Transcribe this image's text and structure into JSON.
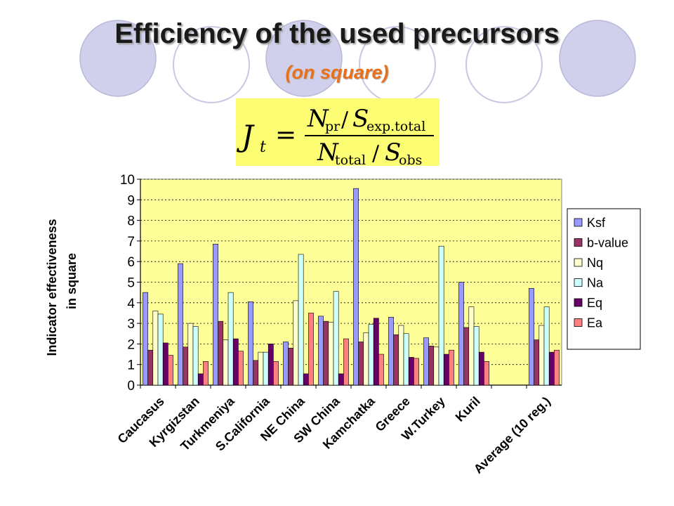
{
  "slide": {
    "title": "Efficiency of the used precursors",
    "subtitle": "(on square)",
    "formula": {
      "lhs": "J",
      "lhs_sub": "t",
      "eq": "=",
      "num_a": "N",
      "num_a_sub": "pr",
      "num_slash": "/",
      "num_b": "S",
      "num_b_sub": "exp.total",
      "den_a": "N",
      "den_a_sub": "total",
      "den_slash": "/",
      "den_b": "S",
      "den_b_sub": "obs"
    }
  },
  "colors": {
    "plot_background": "#ffff99",
    "formula_background": "#fdfd74",
    "circle_fill": "#d0d0ec",
    "circle_stroke": "#b8b8d8"
  },
  "chart_data": {
    "type": "bar",
    "ylabel_line1": "Indicator effectiveness",
    "ylabel_line2": "in square",
    "ylim": [
      0,
      10
    ],
    "yticks": [
      "0",
      "1",
      "2",
      "3",
      "4",
      "5",
      "6",
      "7",
      "8",
      "9",
      "10"
    ],
    "grid": "dotted horizontal",
    "legend_position": "right",
    "categories": [
      "Caucasus",
      "Kyrgizstan",
      "Turkmeniya",
      "S.California",
      "NE China",
      "SW China",
      "Kamchatka",
      "Greece",
      "W.Turkey",
      "Kuril",
      "",
      "Average (10 reg.)"
    ],
    "series": [
      {
        "name": "Ksf",
        "color": "#9999ff",
        "values": [
          4.5,
          5.9,
          6.85,
          4.05,
          2.1,
          3.35,
          9.55,
          3.3,
          2.3,
          5.0,
          0,
          4.7
        ]
      },
      {
        "name": "b-value",
        "color": "#993366",
        "values": [
          1.7,
          1.85,
          3.1,
          1.2,
          1.8,
          3.1,
          2.1,
          2.45,
          1.9,
          2.8,
          0,
          2.2
        ]
      },
      {
        "name": "Nq",
        "color": "#ffffcc",
        "values": [
          3.6,
          3.0,
          2.2,
          1.6,
          4.1,
          3.05,
          2.55,
          2.9,
          1.85,
          3.8,
          0,
          2.9
        ]
      },
      {
        "name": "Na",
        "color": "#ccffff",
        "values": [
          3.45,
          2.85,
          4.5,
          1.6,
          6.35,
          4.55,
          2.95,
          2.5,
          6.75,
          2.85,
          0,
          3.8
        ]
      },
      {
        "name": "Eq",
        "color": "#660066",
        "values": [
          2.05,
          0.55,
          2.25,
          2.0,
          0.55,
          0.55,
          3.25,
          1.35,
          1.5,
          1.6,
          0,
          1.6
        ]
      },
      {
        "name": "Ea",
        "color": "#ff8080",
        "values": [
          1.45,
          1.15,
          1.65,
          1.15,
          3.5,
          2.25,
          1.5,
          1.3,
          1.7,
          1.15,
          0,
          1.7
        ]
      }
    ]
  }
}
